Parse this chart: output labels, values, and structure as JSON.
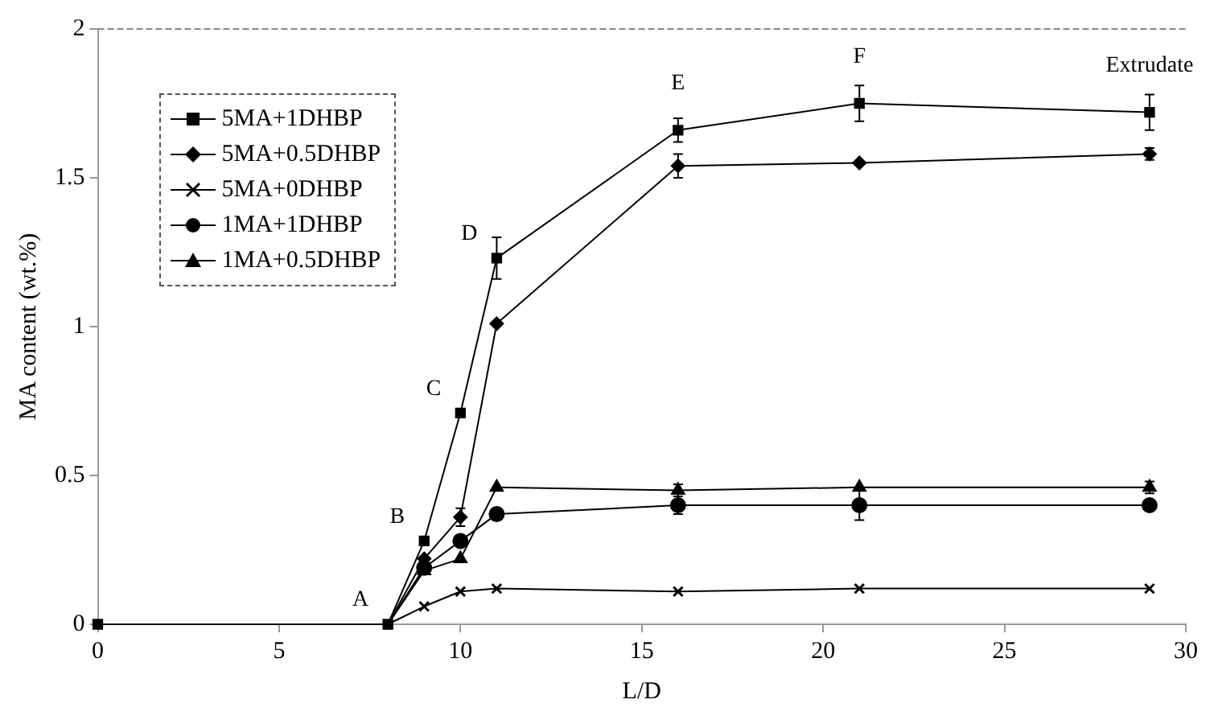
{
  "chart_data": {
    "type": "line",
    "xlabel": "L/D",
    "ylabel": "MA content (wt.%)",
    "xlim": [
      0,
      30
    ],
    "xticks": [
      0,
      5,
      10,
      15,
      20,
      25,
      30
    ],
    "ylim": [
      0,
      2
    ],
    "yticks": [
      0,
      0.5,
      1,
      1.5,
      2
    ],
    "grid": false,
    "legend": "top left",
    "line_style": "solid",
    "x": [
      0,
      8,
      9,
      10,
      11,
      16,
      21,
      29
    ],
    "series": [
      {
        "name": "5MA+1DHBP",
        "color": "#000000",
        "marker": "square",
        "values": [
          0,
          0,
          0.28,
          0.71,
          1.23,
          1.66,
          1.75,
          1.72
        ],
        "errors": [
          null,
          null,
          null,
          null,
          0.07,
          0.04,
          0.06,
          0.06
        ]
      },
      {
        "name": "5MA+0.5DHBP",
        "color": "#000000",
        "marker": "diamond",
        "x": [
          8,
          9,
          10,
          11,
          16,
          21,
          29
        ],
        "values": [
          0,
          0.22,
          0.36,
          1.01,
          1.54,
          1.55,
          1.58
        ],
        "errors": [
          null,
          null,
          0.03,
          null,
          0.04,
          null,
          0.02
        ]
      },
      {
        "name": "5MA+0DHBP",
        "color": "#000000",
        "marker": "cross",
        "x": [
          8,
          9,
          10,
          11,
          16,
          21,
          29
        ],
        "values": [
          0,
          0.06,
          0.11,
          0.12,
          0.11,
          0.12,
          0.12
        ]
      },
      {
        "name": "1MA+1DHBP",
        "color": "#000000",
        "marker": "circle",
        "x": [
          8,
          9,
          10,
          11,
          16,
          21,
          29
        ],
        "values": [
          0,
          0.19,
          0.28,
          0.37,
          0.4,
          0.4,
          0.4
        ],
        "errors": [
          null,
          null,
          null,
          null,
          0.03,
          0.05,
          null
        ]
      },
      {
        "name": "1MA+0.5DHBP",
        "color": "#000000",
        "marker": "triangle",
        "x": [
          8,
          9,
          10,
          11,
          16,
          21,
          29
        ],
        "values": [
          0,
          0.18,
          0.22,
          0.46,
          0.45,
          0.46,
          0.46
        ],
        "errors": [
          null,
          null,
          null,
          null,
          0.02,
          null,
          0.02
        ]
      }
    ],
    "annotations": [
      {
        "text": "A",
        "x": 8,
        "y": 0
      },
      {
        "text": "B",
        "x": 9,
        "y": 0.28
      },
      {
        "text": "C",
        "x": 10,
        "y": 0.71
      },
      {
        "text": "D",
        "x": 11,
        "y": 1.23
      },
      {
        "text": "E",
        "x": 16,
        "y": 1.66
      },
      {
        "text": "F",
        "x": 21,
        "y": 1.75
      },
      {
        "text": "Extrudate",
        "x": 29,
        "y": 1.72
      }
    ]
  }
}
